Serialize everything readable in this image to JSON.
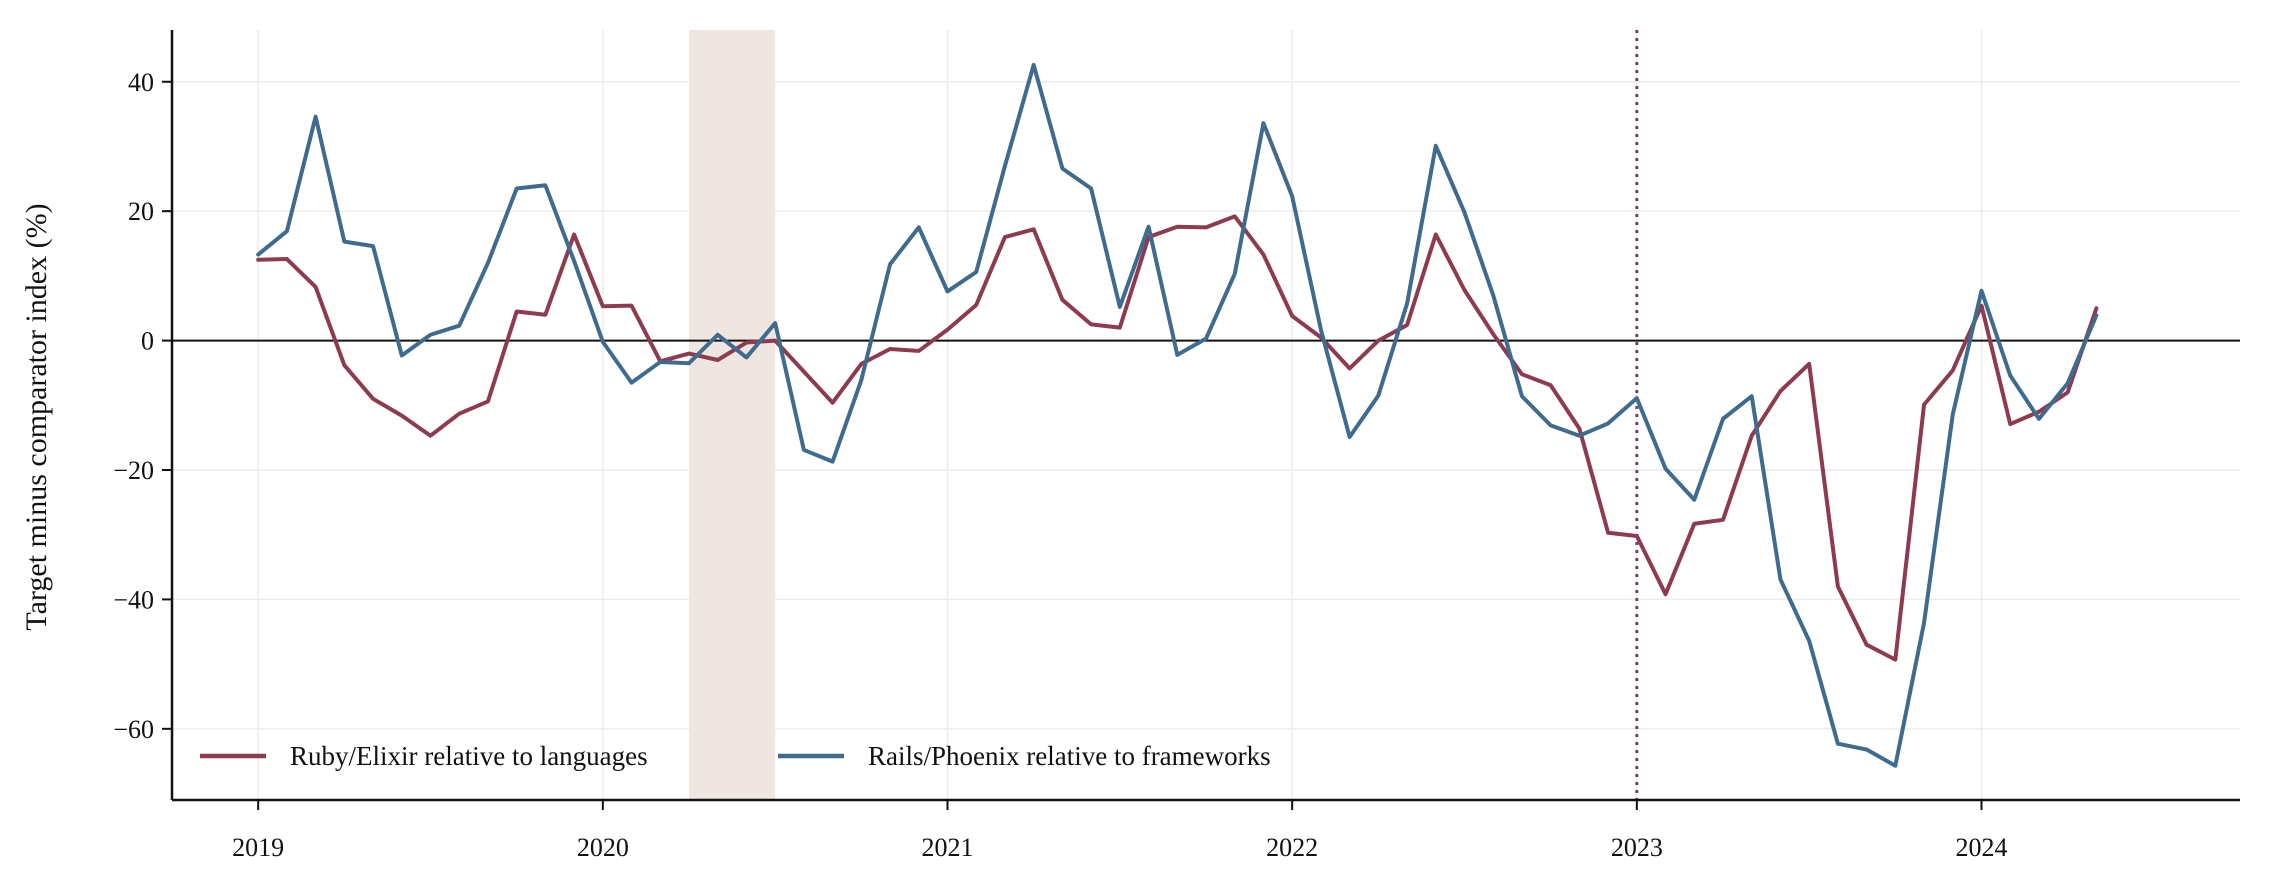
{
  "chart_data": {
    "type": "line",
    "title": "",
    "xlabel": "",
    "ylabel": "Target minus comparator index (%)",
    "x_ticks": [
      {
        "value": "2019-01",
        "label": "2019"
      },
      {
        "value": "2020-01",
        "label": "2020"
      },
      {
        "value": "2021-01",
        "label": "2021"
      },
      {
        "value": "2022-01",
        "label": "2022"
      },
      {
        "value": "2023-01",
        "label": "2023"
      },
      {
        "value": "2024-01",
        "label": "2024"
      }
    ],
    "xlim": [
      "2018-10",
      "2024-10"
    ],
    "y_ticks": [
      40,
      20,
      0,
      -20,
      -40,
      -60
    ],
    "y_tick_labels": [
      "40",
      "20",
      "0",
      "−20",
      "−40",
      "−60"
    ],
    "ylim": [
      -71,
      48
    ],
    "grid": true,
    "zero_line": true,
    "shaded_region": {
      "start": "2020-04",
      "end": "2020-07",
      "color": "#efe6e1"
    },
    "vertical_marker": {
      "x": "2023-01",
      "style": "dotted",
      "color": "#7b3f6e"
    },
    "legend_position": "bottom-left",
    "x": [
      "2019-01",
      "2019-02",
      "2019-03",
      "2019-04",
      "2019-05",
      "2019-06",
      "2019-07",
      "2019-08",
      "2019-09",
      "2019-10",
      "2019-11",
      "2019-12",
      "2020-01",
      "2020-02",
      "2020-03",
      "2020-04",
      "2020-05",
      "2020-06",
      "2020-07",
      "2020-08",
      "2020-09",
      "2020-10",
      "2020-11",
      "2020-12",
      "2021-01",
      "2021-02",
      "2021-03",
      "2021-04",
      "2021-05",
      "2021-06",
      "2021-07",
      "2021-08",
      "2021-09",
      "2021-10",
      "2021-11",
      "2021-12",
      "2022-01",
      "2022-02",
      "2022-03",
      "2022-04",
      "2022-05",
      "2022-06",
      "2022-07",
      "2022-08",
      "2022-09",
      "2022-10",
      "2022-11",
      "2022-12",
      "2023-01",
      "2023-02",
      "2023-03",
      "2023-04",
      "2023-05",
      "2023-06",
      "2023-07",
      "2023-08",
      "2023-09",
      "2023-10",
      "2023-11",
      "2023-12",
      "2024-01",
      "2024-02",
      "2024-03",
      "2024-04",
      "2024-05"
    ],
    "series": [
      {
        "name": "Ruby/Elixir relative to languages",
        "color": "#8e3a4f",
        "values": [
          12.5,
          12.6,
          8.3,
          -3.8,
          -9.0,
          -11.6,
          -14.7,
          -11.3,
          -9.4,
          4.5,
          4.0,
          16.4,
          5.3,
          5.4,
          -3.2,
          -2.0,
          -3.0,
          -0.3,
          0.0,
          -4.8,
          -9.6,
          -3.6,
          -1.3,
          -1.6,
          1.7,
          5.5,
          16.0,
          17.2,
          6.3,
          2.5,
          2.0,
          16.0,
          17.6,
          17.5,
          19.2,
          13.3,
          3.8,
          0.5,
          -4.3,
          0.0,
          2.4,
          16.4,
          7.8,
          1.0,
          -5.2,
          -6.9,
          -13.6,
          -29.7,
          -30.2,
          -39.2,
          -28.3,
          -27.7,
          -14.7,
          -7.8,
          -3.6,
          -38.0,
          -47.0,
          -49.3,
          -9.9,
          -4.6,
          5.4,
          -12.9,
          -11.0,
          -8.0,
          5.0
        ]
      },
      {
        "name": "Rails/Phoenix relative to frameworks",
        "color": "#3e6b8e",
        "values": [
          13.3,
          16.9,
          34.6,
          15.3,
          14.6,
          -2.3,
          0.9,
          2.3,
          12.0,
          23.5,
          24.0,
          12.3,
          -0.2,
          -6.5,
          -3.3,
          -3.5,
          0.9,
          -2.6,
          2.7,
          -16.9,
          -18.7,
          -6.1,
          11.8,
          17.5,
          7.6,
          10.6,
          27.0,
          42.6,
          26.6,
          23.5,
          5.2,
          17.6,
          -2.2,
          0.3,
          10.3,
          33.6,
          22.3,
          1.7,
          -14.9,
          -8.5,
          5.7,
          30.1,
          19.8,
          7.0,
          -8.6,
          -13.1,
          -14.7,
          -12.8,
          -8.9,
          -19.8,
          -24.6,
          -12.1,
          -8.6,
          -36.9,
          -46.4,
          -62.3,
          -63.2,
          -65.7,
          -43.6,
          -11.4,
          7.7,
          -5.4,
          -12.1,
          -6.6,
          3.9
        ]
      }
    ]
  }
}
